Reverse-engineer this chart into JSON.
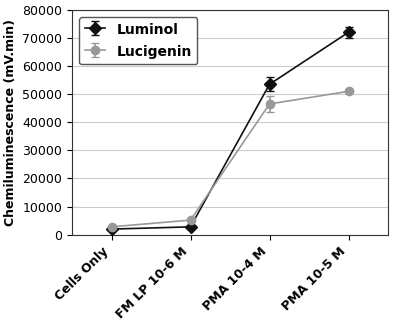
{
  "categories": [
    "Cells Only",
    "FM LP 10-6 M",
    "PMA 10-4 M",
    "PMA 10-5 M"
  ],
  "luminol_values": [
    2000,
    2800,
    53500,
    72000
  ],
  "luminol_errors": [
    0,
    0,
    2500,
    2000
  ],
  "lucigenin_values": [
    2800,
    5200,
    46500,
    51000
  ],
  "lucigenin_errors": [
    0,
    0,
    3000,
    0
  ],
  "luminol_color": "#111111",
  "lucigenin_color": "#999999",
  "ylabel": "Chemiluminescence (mV.min)",
  "ylim": [
    0,
    80000
  ],
  "yticks": [
    0,
    10000,
    20000,
    30000,
    40000,
    50000,
    60000,
    70000,
    80000
  ],
  "legend_labels": [
    "Luminol",
    "Lucigenin"
  ],
  "background_color": "#ffffff",
  "grid_color": "#cccccc",
  "marker_luminol": "D",
  "marker_lucigenin": "o",
  "linewidth": 1.2,
  "markersize": 6,
  "tick_fontsize": 9,
  "ylabel_fontsize": 9,
  "legend_fontsize": 10
}
